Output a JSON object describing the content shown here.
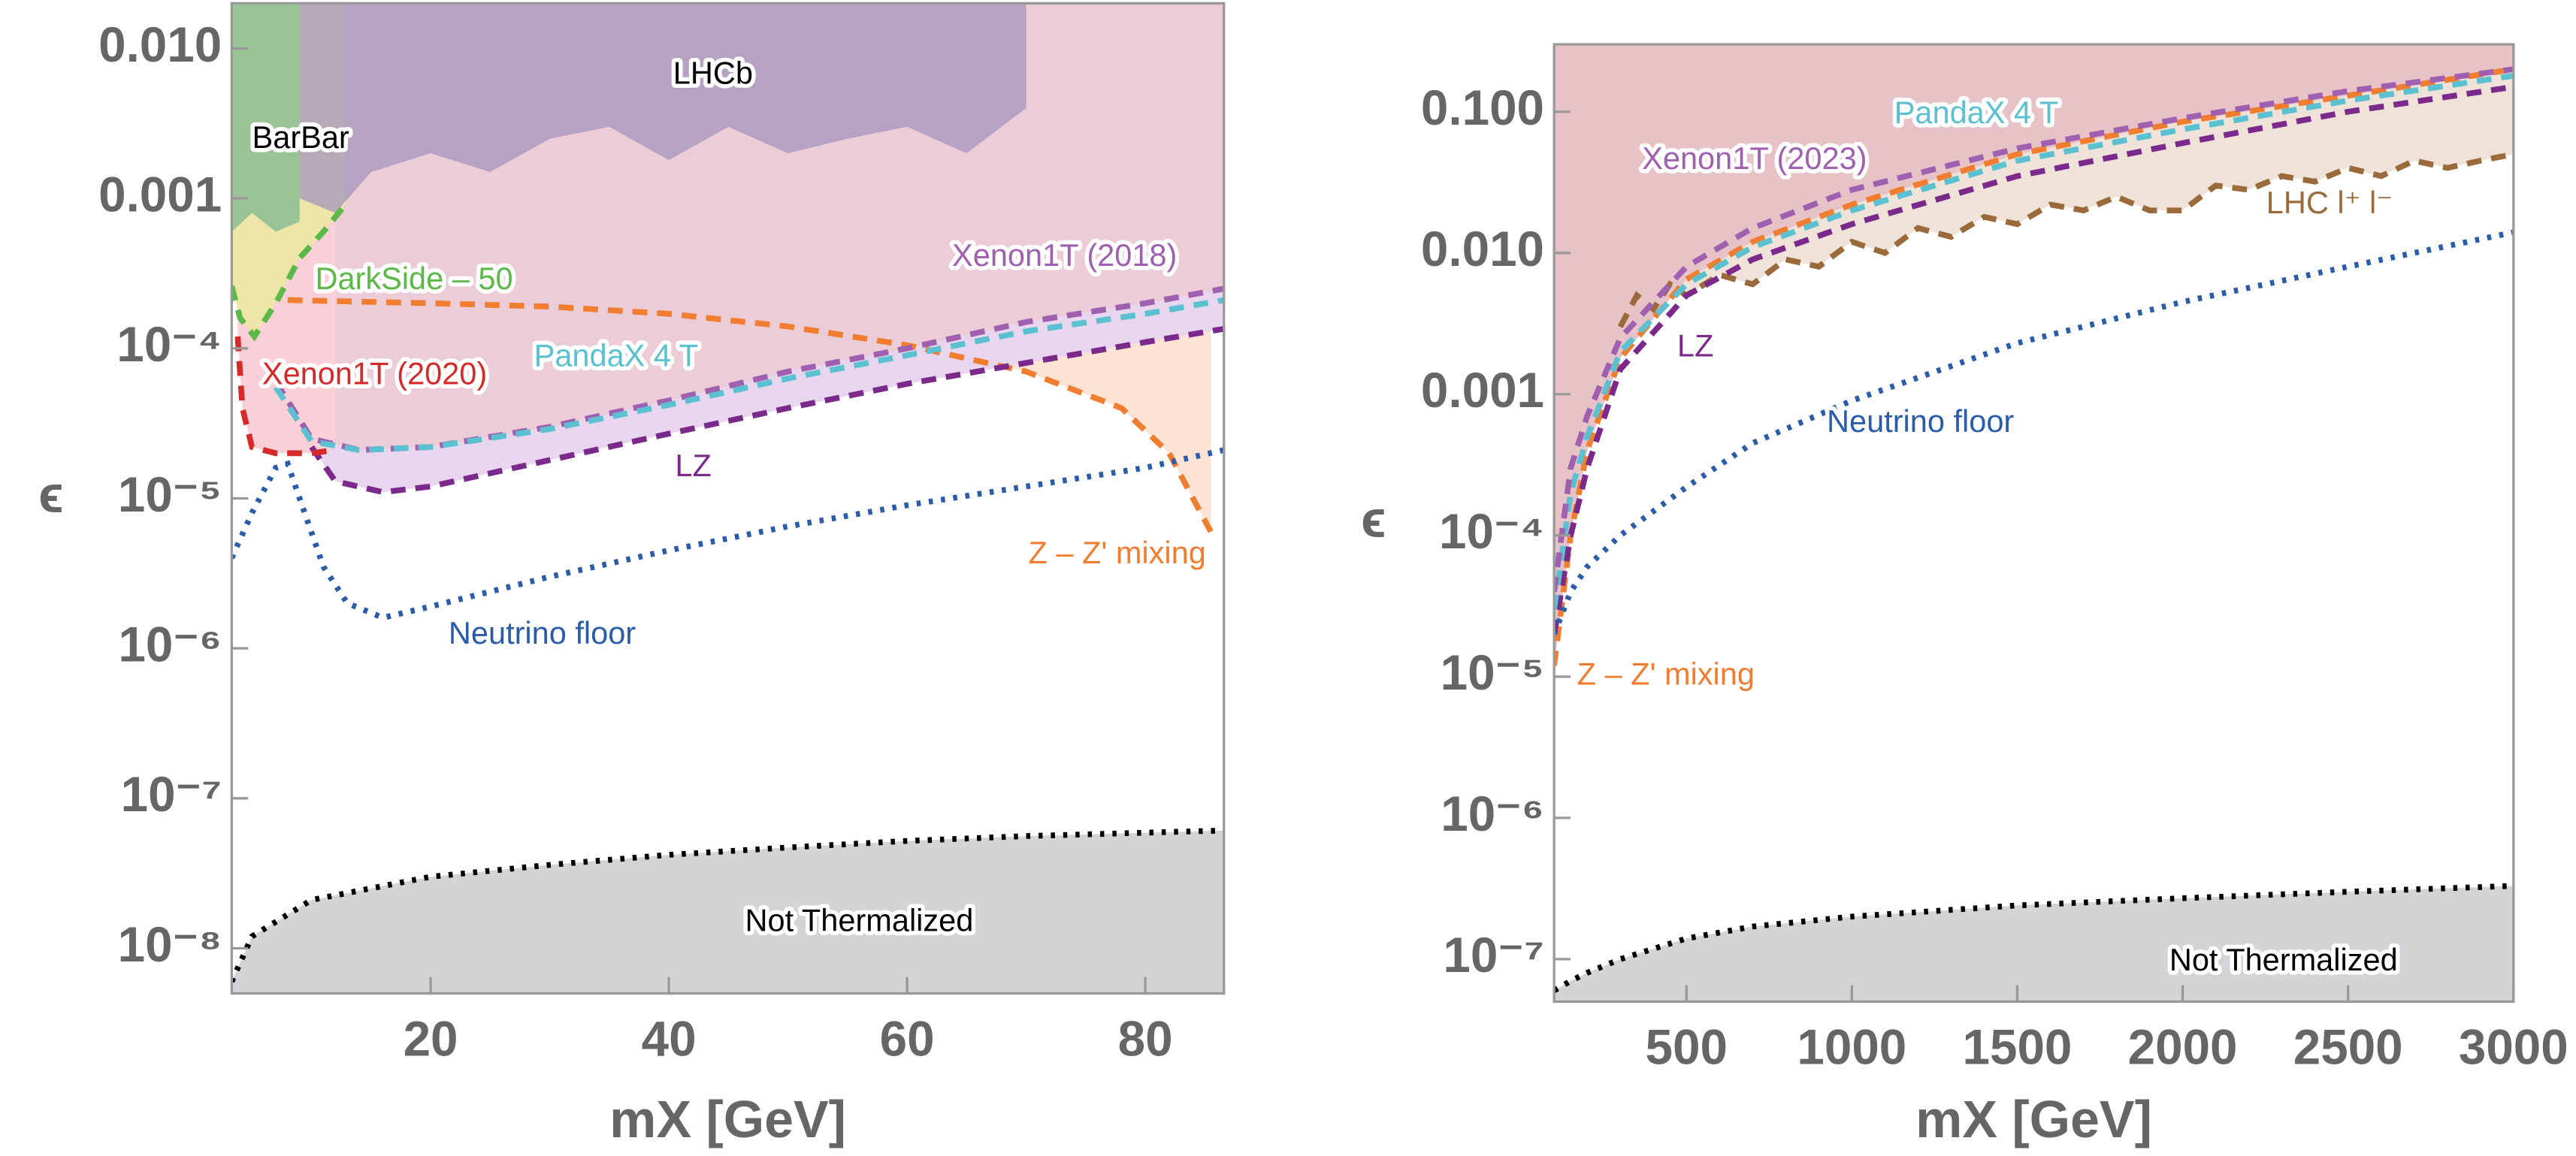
{
  "chart_data": [
    {
      "type": "line",
      "log_y": true,
      "xlabel": "mX [GeV]",
      "ylabel": "ϵ",
      "xlim": [
        3.3,
        86.6
      ],
      "ylim": [
        5e-09,
        0.02
      ],
      "xticks": [
        20,
        40,
        60,
        80
      ],
      "yticks": [
        {
          "value": 0.01,
          "label": "0.010"
        },
        {
          "value": 0.001,
          "label": "0.001"
        },
        {
          "value": 0.0001,
          "label": "10⁻⁴"
        },
        {
          "value": 1e-05,
          "label": "10⁻⁵"
        },
        {
          "value": 1e-06,
          "label": "10⁻⁶"
        },
        {
          "value": 1e-07,
          "label": "10⁻⁷"
        },
        {
          "value": 1e-08,
          "label": "10⁻⁸"
        }
      ],
      "series": [
        {
          "name": "Z – Z' mixing",
          "color": "#f07d30",
          "dash": "dashed",
          "fill": "#fde3d3",
          "fill_side": "above",
          "x": [
            8,
            20,
            30,
            40,
            50,
            60,
            70,
            78,
            82,
            84,
            85.5
          ],
          "values": [
            0.00021,
            0.0002,
            0.00019,
            0.00017,
            0.00014,
            0.000105,
            7e-05,
            4e-05,
            2e-05,
            1e-05,
            6e-06
          ]
        },
        {
          "name": "LZ",
          "color": "#7b2a8c",
          "dash": "dashed",
          "fill": "#e8d6ee",
          "fill_side": "above",
          "x": [
            10,
            12,
            16,
            20,
            30,
            40,
            50,
            60,
            70,
            80,
            86.6
          ],
          "values": [
            2.2e-05,
            1.3e-05,
            1.1e-05,
            1.2e-05,
            1.8e-05,
            2.7e-05,
            4e-05,
            5.8e-05,
            8e-05,
            0.00011,
            0.000135
          ]
        },
        {
          "name": "Xenon1T (2018)",
          "color": "#a060b0",
          "dash": "dashed",
          "fill": "#ecccd6",
          "fill_side": "above",
          "x": [
            7,
            10,
            14,
            20,
            30,
            40,
            50,
            60,
            70,
            80,
            86.6
          ],
          "values": [
            6e-05,
            2.5e-05,
            2.1e-05,
            2.2e-05,
            3e-05,
            4.5e-05,
            7e-05,
            0.0001,
            0.00015,
            0.0002,
            0.00025
          ]
        },
        {
          "name": "PandaX 4 T",
          "color": "#5bc0d0",
          "dash": "dashed",
          "x": [
            7,
            10,
            14,
            20,
            30,
            40,
            50,
            60,
            70,
            80,
            86.6
          ],
          "values": [
            5.5e-05,
            2.4e-05,
            2.1e-05,
            2.2e-05,
            2.9e-05,
            4.2e-05,
            6.3e-05,
            9e-05,
            0.00013,
            0.00017,
            0.00021
          ]
        },
        {
          "name": "Xenon1T (2020)",
          "color": "#d62a2a",
          "dash": "dashed",
          "fill": "#f9d0d8",
          "fill_side": "above",
          "x": [
            3.8,
            4.2,
            5,
            7,
            10,
            12
          ],
          "values": [
            0.00012,
            4e-05,
            2.2e-05,
            2e-05,
            2e-05,
            2.1e-05
          ]
        },
        {
          "name": "DarkSide – 50",
          "color": "#5cb848",
          "dash": "dashed",
          "fill": "#eee6a8",
          "fill_side": "above",
          "x": [
            3.3,
            4,
            5.2,
            7,
            9,
            11,
            12.8
          ],
          "values": [
            0.00026,
            0.00016,
            0.00012,
            0.0002,
            0.0004,
            0.0006,
            0.0009
          ]
        },
        {
          "name": "BarBar",
          "color": "#6fb88a",
          "dash": "none",
          "fill": "#7fb890",
          "fill_side": "above",
          "x": [
            3.3,
            5,
            7,
            9
          ],
          "values": [
            0.0006,
            0.0008,
            0.0006,
            0.0007
          ]
        },
        {
          "name": "LHCb",
          "color": "#9a88b4",
          "dash": "none",
          "fill": "#a494bc",
          "fill_side": "above",
          "x": [
            9,
            12,
            15,
            20,
            25,
            30,
            35,
            40,
            45,
            50,
            55,
            60,
            65,
            70
          ],
          "values": [
            0.001,
            0.0008,
            0.0015,
            0.002,
            0.0015,
            0.0025,
            0.003,
            0.0018,
            0.003,
            0.002,
            0.0025,
            0.003,
            0.002,
            0.004
          ]
        },
        {
          "name": "Neutrino floor",
          "color": "#2a5caa",
          "dash": "dotted",
          "x": [
            3.3,
            5,
            7,
            8,
            9,
            11,
            13,
            16,
            20,
            30,
            40,
            50,
            60,
            70,
            80,
            86.6
          ],
          "values": [
            4e-06,
            8e-06,
            1.6e-05,
            1.7e-05,
            1e-05,
            3.5e-06,
            2e-06,
            1.6e-06,
            1.9e-06,
            3e-06,
            4.5e-06,
            6.5e-06,
            9e-06,
            1.2e-05,
            1.6e-05,
            2.1e-05
          ]
        },
        {
          "name": "Not Thermalized",
          "color": "#000000",
          "dash": "dotted",
          "fill": "#d4d4d6",
          "fill_side": "below",
          "x": [
            3.3,
            5,
            10,
            20,
            30,
            40,
            50,
            60,
            70,
            80,
            86.6
          ],
          "values": [
            6e-09,
            1.2e-08,
            2.1e-08,
            3e-08,
            3.6e-08,
            4.2e-08,
            4.7e-08,
            5.2e-08,
            5.6e-08,
            5.9e-08,
            6.1e-08
          ]
        }
      ]
    },
    {
      "type": "line",
      "log_y": true,
      "xlabel": "mX [GeV]",
      "ylabel": "ϵ",
      "xlim": [
        100,
        3000
      ],
      "ylim": [
        5e-08,
        0.3
      ],
      "xticks": [
        500,
        1000,
        1500,
        2000,
        2500,
        3000
      ],
      "yticks": [
        {
          "value": 0.1,
          "label": "0.100"
        },
        {
          "value": 0.01,
          "label": "0.010"
        },
        {
          "value": 0.001,
          "label": "0.001"
        },
        {
          "value": 0.0001,
          "label": "10⁻⁴"
        },
        {
          "value": 1e-05,
          "label": "10⁻⁵"
        },
        {
          "value": 1e-06,
          "label": "10⁻⁶"
        },
        {
          "value": 1e-07,
          "label": "10⁻⁷"
        }
      ],
      "series": [
        {
          "name": "LHC l⁺ l⁻",
          "color": "#9a6a3a",
          "dash": "dashed",
          "fill": "#efe2d8",
          "fill_side": "above",
          "x": [
            300,
            350,
            400,
            450,
            500,
            600,
            700,
            800,
            900,
            1000,
            1100,
            1200,
            1300,
            1400,
            1500,
            1600,
            1700,
            1800,
            1900,
            2000,
            2100,
            2200,
            2300,
            2400,
            2500,
            2600,
            2700,
            2800,
            2900,
            3000
          ],
          "values": [
            0.003,
            0.005,
            0.004,
            0.006,
            0.005,
            0.007,
            0.006,
            0.009,
            0.008,
            0.012,
            0.01,
            0.015,
            0.013,
            0.018,
            0.016,
            0.022,
            0.02,
            0.025,
            0.02,
            0.02,
            0.03,
            0.028,
            0.035,
            0.032,
            0.04,
            0.035,
            0.045,
            0.04,
            0.045,
            0.05
          ]
        },
        {
          "name": "Z – Z' mixing",
          "color": "#f07d30",
          "dash": "dashed",
          "fill": "#e7c3c7",
          "fill_side": "above",
          "x": [
            100,
            150,
            200,
            300,
            500,
            700,
            1000,
            1500,
            2000,
            2500,
            3000
          ],
          "values": [
            1.2e-05,
            0.0001,
            0.0004,
            0.0018,
            0.0065,
            0.012,
            0.022,
            0.05,
            0.085,
            0.13,
            0.2
          ]
        },
        {
          "name": "LZ",
          "color": "#7b2a8c",
          "dash": "dashed",
          "x": [
            100,
            150,
            200,
            300,
            500,
            700,
            1000,
            1500,
            2000,
            2500,
            3000
          ],
          "values": [
            2e-05,
            0.0001,
            0.0003,
            0.0015,
            0.005,
            0.009,
            0.016,
            0.035,
            0.06,
            0.1,
            0.15
          ]
        },
        {
          "name": "PandaX 4 T",
          "color": "#5bc0d0",
          "dash": "dashed",
          "x": [
            100,
            150,
            200,
            300,
            500,
            700,
            1000,
            1500,
            2000,
            2500,
            3000
          ],
          "values": [
            3e-05,
            0.0002,
            0.0005,
            0.002,
            0.006,
            0.011,
            0.02,
            0.045,
            0.075,
            0.12,
            0.18
          ]
        },
        {
          "name": "Xenon1T (2023)",
          "color": "#a060b0",
          "dash": "dashed",
          "x": [
            100,
            150,
            200,
            300,
            500,
            700,
            1000,
            1500,
            2000,
            2500,
            3000
          ],
          "values": [
            4e-05,
            0.0003,
            0.0007,
            0.0025,
            0.008,
            0.015,
            0.028,
            0.055,
            0.09,
            0.14,
            0.2
          ]
        },
        {
          "name": "Neutrino floor",
          "color": "#2a5caa",
          "dash": "dotted",
          "x": [
            100,
            150,
            200,
            300,
            500,
            700,
            1000,
            1500,
            2000,
            2500,
            3000
          ],
          "values": [
            2e-05,
            4e-05,
            6e-05,
            0.0001,
            0.00022,
            0.00045,
            0.0009,
            0.0023,
            0.0045,
            0.008,
            0.014
          ]
        },
        {
          "name": "Not Thermalized",
          "color": "#000000",
          "dash": "dotted",
          "fill": "#d4d4d6",
          "fill_side": "below",
          "x": [
            100,
            150,
            200,
            300,
            500,
            700,
            1000,
            1500,
            2000,
            2500,
            3000
          ],
          "values": [
            6e-08,
            7e-08,
            8e-08,
            1e-07,
            1.4e-07,
            1.7e-07,
            2e-07,
            2.4e-07,
            2.7e-07,
            3e-07,
            3.3e-07
          ]
        }
      ]
    }
  ]
}
